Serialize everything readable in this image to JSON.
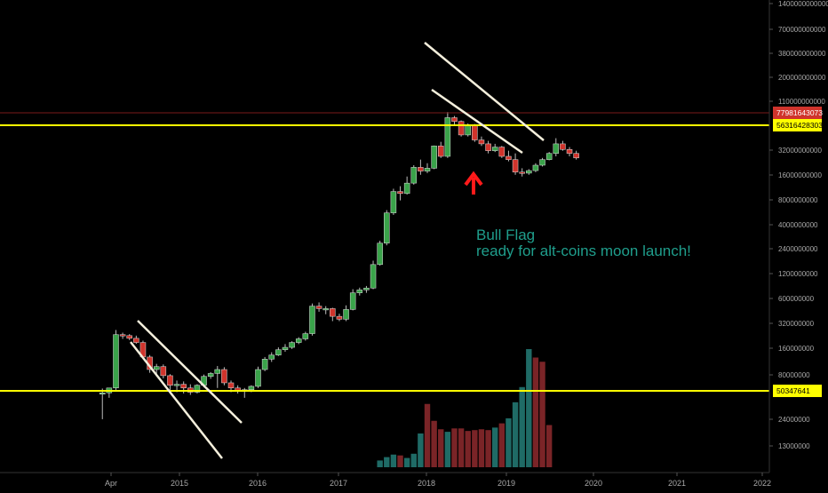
{
  "colors": {
    "background": "#000000",
    "up": "#3aa34a",
    "down": "#d0342c",
    "vol_up": "#1f6b66",
    "vol_down": "#7a2427",
    "support": "#ffff00",
    "channel": "#ffffff",
    "annotation": "#1f9e8c",
    "arrow": "#ff1111",
    "price_line": "#8b1a1a"
  },
  "chart_data": {
    "type": "candlestick",
    "interval": "monthly",
    "y_scale": "log",
    "ylim": [
      10000000000,
      14000000000000
    ],
    "y_ticks": [
      "1400000000000",
      "700000000000",
      "380000000000",
      "200000000000",
      "110000000000",
      "32000000000",
      "16000000000",
      "8000000000",
      "4000000000",
      "2400000000",
      "1200000000",
      "600000000",
      "320000000",
      "160000000",
      "80000000",
      "24000000",
      "13000000"
    ],
    "x_ticks": [
      "Apr",
      "2015",
      "2016",
      "2017",
      "2018",
      "2019",
      "2020",
      "2021",
      "2022"
    ],
    "price_labels": [
      {
        "text": "77981643073",
        "bg": "#d0342c",
        "fg": "#ffffff"
      },
      {
        "text": "56316428303",
        "bg": "#ffff00",
        "fg": "#000000"
      },
      {
        "text": "50347641",
        "bg": "#ffff00",
        "fg": "#000000"
      }
    ],
    "annotation": {
      "line1": "Bull Flag",
      "line2": "ready for  alt-coins moon launch!"
    },
    "candles": [
      {
        "t": "2014-03",
        "o": 46,
        "h": 54,
        "l": 20,
        "c": 47
      },
      {
        "t": "2014-04",
        "o": 47,
        "h": 51,
        "l": 40,
        "c": 55
      },
      {
        "t": "2014-05",
        "o": 55,
        "h": 360,
        "l": 50,
        "c": 310
      },
      {
        "t": "2014-06",
        "o": 310,
        "h": 330,
        "l": 270,
        "c": 300
      },
      {
        "t": "2014-07",
        "o": 300,
        "h": 315,
        "l": 260,
        "c": 275
      },
      {
        "t": "2014-08",
        "o": 275,
        "h": 300,
        "l": 230,
        "c": 240
      },
      {
        "t": "2014-09",
        "o": 240,
        "h": 255,
        "l": 140,
        "c": 150
      },
      {
        "t": "2014-10",
        "o": 150,
        "h": 160,
        "l": 90,
        "c": 100
      },
      {
        "t": "2014-11",
        "o": 100,
        "h": 120,
        "l": 80,
        "c": 110
      },
      {
        "t": "2014-12",
        "o": 110,
        "h": 118,
        "l": 75,
        "c": 82
      },
      {
        "t": "2015-01",
        "o": 82,
        "h": 86,
        "l": 50,
        "c": 60
      },
      {
        "t": "2015-02",
        "o": 60,
        "h": 70,
        "l": 48,
        "c": 62
      },
      {
        "t": "2015-03",
        "o": 62,
        "h": 68,
        "l": 46,
        "c": 55
      },
      {
        "t": "2015-04",
        "o": 55,
        "h": 62,
        "l": 44,
        "c": 48
      },
      {
        "t": "2015-05",
        "o": 48,
        "h": 62,
        "l": 46,
        "c": 60
      },
      {
        "t": "2015-06",
        "o": 60,
        "h": 85,
        "l": 56,
        "c": 80
      },
      {
        "t": "2015-07",
        "o": 80,
        "h": 92,
        "l": 74,
        "c": 88
      },
      {
        "t": "2015-08",
        "o": 88,
        "h": 112,
        "l": 55,
        "c": 100
      },
      {
        "t": "2015-09",
        "o": 100,
        "h": 108,
        "l": 60,
        "c": 65
      },
      {
        "t": "2015-10",
        "o": 65,
        "h": 70,
        "l": 48,
        "c": 55
      },
      {
        "t": "2015-11",
        "o": 55,
        "h": 60,
        "l": 46,
        "c": 50
      },
      {
        "t": "2015-12",
        "o": 50,
        "h": 55,
        "l": 40,
        "c": 52
      },
      {
        "t": "2016-01",
        "o": 52,
        "h": 60,
        "l": 48,
        "c": 58
      },
      {
        "t": "2016-02",
        "o": 58,
        "h": 110,
        "l": 55,
        "c": 100
      },
      {
        "t": "2016-03",
        "o": 100,
        "h": 150,
        "l": 95,
        "c": 140
      },
      {
        "t": "2016-04",
        "o": 140,
        "h": 175,
        "l": 128,
        "c": 160
      },
      {
        "t": "2016-05",
        "o": 160,
        "h": 205,
        "l": 155,
        "c": 190
      },
      {
        "t": "2016-06",
        "o": 190,
        "h": 228,
        "l": 178,
        "c": 205
      },
      {
        "t": "2016-07",
        "o": 205,
        "h": 250,
        "l": 195,
        "c": 240
      },
      {
        "t": "2016-08",
        "o": 240,
        "h": 285,
        "l": 228,
        "c": 270
      },
      {
        "t": "2016-09",
        "o": 270,
        "h": 340,
        "l": 255,
        "c": 320
      },
      {
        "t": "2016-10",
        "o": 320,
        "h": 850,
        "l": 300,
        "c": 780
      },
      {
        "t": "2016-11",
        "o": 780,
        "h": 880,
        "l": 650,
        "c": 720
      },
      {
        "t": "2016-12",
        "o": 720,
        "h": 780,
        "l": 600,
        "c": 720
      },
      {
        "t": "2017-01",
        "o": 720,
        "h": 740,
        "l": 480,
        "c": 560
      },
      {
        "t": "2017-02",
        "o": 560,
        "h": 610,
        "l": 480,
        "c": 510
      },
      {
        "t": "2017-03",
        "o": 510,
        "h": 800,
        "l": 480,
        "c": 700
      },
      {
        "t": "2017-04",
        "o": 700,
        "h": 1350,
        "l": 680,
        "c": 1200
      },
      {
        "t": "2017-05",
        "o": 1200,
        "h": 1420,
        "l": 1100,
        "c": 1320
      },
      {
        "t": "2017-06",
        "o": 1320,
        "h": 1500,
        "l": 1200,
        "c": 1400
      },
      {
        "t": "2017-07",
        "o": 1400,
        "h": 3400,
        "l": 1350,
        "c": 3000
      },
      {
        "t": "2017-08",
        "o": 3000,
        "h": 6500,
        "l": 2900,
        "c": 6000
      },
      {
        "t": "2017-09",
        "o": 6000,
        "h": 17500,
        "l": 5600,
        "c": 16000
      },
      {
        "t": "2017-10",
        "o": 16000,
        "h": 35000,
        "l": 15000,
        "c": 32000
      },
      {
        "t": "2017-11",
        "o": 32000,
        "h": 38000,
        "l": 24000,
        "c": 30000
      },
      {
        "t": "2017-12",
        "o": 30000,
        "h": 52000,
        "l": 29000,
        "c": 42000
      },
      {
        "t": "2018-01",
        "o": 42000,
        "h": 75000,
        "l": 40000,
        "c": 70000
      },
      {
        "t": "2018-02",
        "o": 70000,
        "h": 90000,
        "l": 55000,
        "c": 62000
      },
      {
        "t": "2018-03",
        "o": 62000,
        "h": 80000,
        "l": 58000,
        "c": 68000
      },
      {
        "t": "2018-04",
        "o": 68000,
        "h": 142000,
        "l": 66000,
        "c": 140000
      },
      {
        "t": "2018-05",
        "o": 140000,
        "h": 160000,
        "l": 95000,
        "c": 100000
      },
      {
        "t": "2018-06",
        "o": 100000,
        "h": 420000,
        "l": 95000,
        "c": 350000
      },
      {
        "t": "2018-07",
        "o": 350000,
        "h": 370000,
        "l": 280000,
        "c": 310000
      },
      {
        "t": "2018-08",
        "o": 310000,
        "h": 320000,
        "l": 190000,
        "c": 200000
      },
      {
        "t": "2018-09",
        "o": 200000,
        "h": 290000,
        "l": 190000,
        "c": 270000
      },
      {
        "t": "2018-10",
        "o": 270000,
        "h": 285000,
        "l": 160000,
        "c": 170000
      },
      {
        "t": "2018-11",
        "o": 170000,
        "h": 190000,
        "l": 140000,
        "c": 150000
      },
      {
        "t": "2018-12",
        "o": 150000,
        "h": 165000,
        "l": 110000,
        "c": 120000
      },
      {
        "t": "2019-01",
        "o": 120000,
        "h": 150000,
        "l": 115000,
        "c": 135000
      },
      {
        "t": "2019-02",
        "o": 135000,
        "h": 140000,
        "l": 95000,
        "c": 100000
      },
      {
        "t": "2019-03",
        "o": 100000,
        "h": 120000,
        "l": 85000,
        "c": 90000
      },
      {
        "t": "2019-04",
        "o": 90000,
        "h": 110000,
        "l": 55000,
        "c": 60000
      },
      {
        "t": "2019-05",
        "o": 60000,
        "h": 68000,
        "l": 52000,
        "c": 58000
      },
      {
        "t": "2019-06",
        "o": 58000,
        "h": 66000,
        "l": 55000,
        "c": 63000
      },
      {
        "t": "2019-07",
        "o": 63000,
        "h": 80000,
        "l": 60000,
        "c": 75000
      },
      {
        "t": "2019-08",
        "o": 75000,
        "h": 95000,
        "l": 72000,
        "c": 90000
      },
      {
        "t": "2019-09",
        "o": 90000,
        "h": 115000,
        "l": 88000,
        "c": 110000
      },
      {
        "t": "2019-10",
        "o": 110000,
        "h": 180000,
        "l": 100000,
        "c": 150000
      },
      {
        "t": "2019-11",
        "o": 150000,
        "h": 165000,
        "l": 120000,
        "c": 125000
      },
      {
        "t": "2019-12",
        "o": 125000,
        "h": 135000,
        "l": 100000,
        "c": 110000
      },
      {
        "t": "2020-01",
        "o": 110000,
        "h": 120000,
        "l": 90000,
        "c": 95000
      }
    ],
    "volume": [
      {
        "t": "2017-08",
        "v": 0.8,
        "up": true
      },
      {
        "t": "2017-09",
        "v": 1.2,
        "up": true
      },
      {
        "t": "2017-10",
        "v": 1.5,
        "up": true
      },
      {
        "t": "2017-11",
        "v": 1.4,
        "up": false
      },
      {
        "t": "2017-12",
        "v": 1.1,
        "up": true
      },
      {
        "t": "2018-01",
        "v": 1.6,
        "up": true
      },
      {
        "t": "2018-02",
        "v": 4.0,
        "up": true
      },
      {
        "t": "2018-03",
        "v": 7.5,
        "up": false
      },
      {
        "t": "2018-04",
        "v": 5.5,
        "up": false
      },
      {
        "t": "2018-05",
        "v": 4.5,
        "up": false
      },
      {
        "t": "2018-06",
        "v": 4.2,
        "up": true
      },
      {
        "t": "2018-07",
        "v": 4.6,
        "up": false
      },
      {
        "t": "2018-08",
        "v": 4.6,
        "up": false
      },
      {
        "t": "2018-09",
        "v": 4.3,
        "up": false
      },
      {
        "t": "2018-10",
        "v": 4.4,
        "up": false
      },
      {
        "t": "2018-11",
        "v": 4.5,
        "up": false
      },
      {
        "t": "2018-12",
        "v": 4.4,
        "up": false
      },
      {
        "t": "2019-01",
        "v": 4.7,
        "up": true
      },
      {
        "t": "2019-02",
        "v": 5.2,
        "up": false
      },
      {
        "t": "2019-03",
        "v": 5.8,
        "up": true
      },
      {
        "t": "2019-04",
        "v": 7.7,
        "up": true
      },
      {
        "t": "2019-05",
        "v": 9.5,
        "up": true
      },
      {
        "t": "2019-06",
        "v": 14.0,
        "up": true
      },
      {
        "t": "2019-07",
        "v": 13.0,
        "up": false
      },
      {
        "t": "2019-08",
        "v": 12.5,
        "up": false
      },
      {
        "t": "2019-09",
        "v": 5.0,
        "up": false
      }
    ]
  }
}
